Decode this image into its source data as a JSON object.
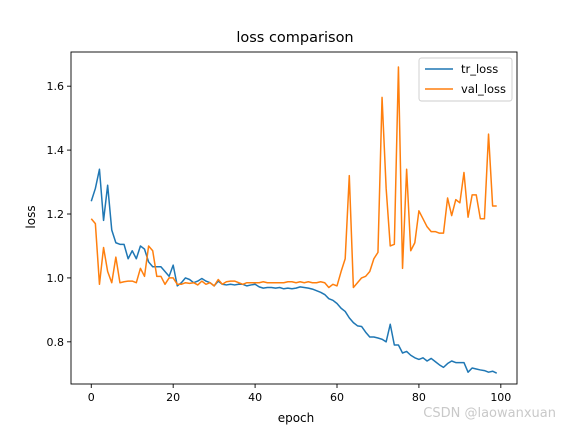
{
  "watermark": "CSDN @laowanxuan",
  "chart_data": {
    "type": "line",
    "title": "loss comparison",
    "xlabel": "epoch",
    "ylabel": "loss",
    "xlim": [
      -4.95,
      103.95
    ],
    "ylim": [
      0.668,
      1.707
    ],
    "xticks": [
      0,
      20,
      40,
      60,
      80,
      100
    ],
    "yticks": [
      0.8,
      1.0,
      1.2,
      1.4,
      1.6
    ],
    "xtick_labels": [
      "0",
      "20",
      "40",
      "60",
      "80",
      "100"
    ],
    "ytick_labels": [
      "0.8",
      "1.0",
      "1.2",
      "1.4",
      "1.6"
    ],
    "grid": false,
    "legend_position": "top-right",
    "x": [
      0,
      1,
      2,
      3,
      4,
      5,
      6,
      7,
      8,
      9,
      10,
      11,
      12,
      13,
      14,
      15,
      16,
      17,
      18,
      19,
      20,
      21,
      22,
      23,
      24,
      25,
      26,
      27,
      28,
      29,
      30,
      31,
      32,
      33,
      34,
      35,
      36,
      37,
      38,
      39,
      40,
      41,
      42,
      43,
      44,
      45,
      46,
      47,
      48,
      49,
      50,
      51,
      52,
      53,
      54,
      55,
      56,
      57,
      58,
      59,
      60,
      61,
      62,
      63,
      64,
      65,
      66,
      67,
      68,
      69,
      70,
      71,
      72,
      73,
      74,
      75,
      76,
      77,
      78,
      79,
      80,
      81,
      82,
      83,
      84,
      85,
      86,
      87,
      88,
      89,
      90,
      91,
      92,
      93,
      94,
      95,
      96,
      97,
      98,
      99
    ],
    "series": [
      {
        "name": "tr_loss",
        "color": "#1f77b4",
        "values": [
          1.24,
          1.28,
          1.34,
          1.18,
          1.29,
          1.15,
          1.11,
          1.105,
          1.105,
          1.06,
          1.085,
          1.06,
          1.1,
          1.09,
          1.05,
          1.035,
          1.035,
          1.035,
          1.02,
          1.005,
          1.04,
          0.975,
          0.985,
          1.0,
          0.995,
          0.985,
          0.99,
          0.998,
          0.99,
          0.985,
          0.975,
          0.99,
          0.98,
          0.978,
          0.98,
          0.978,
          0.98,
          0.98,
          0.975,
          0.978,
          0.98,
          0.972,
          0.968,
          0.97,
          0.97,
          0.968,
          0.97,
          0.966,
          0.968,
          0.966,
          0.968,
          0.972,
          0.97,
          0.968,
          0.965,
          0.96,
          0.955,
          0.948,
          0.935,
          0.93,
          0.92,
          0.905,
          0.895,
          0.875,
          0.86,
          0.85,
          0.848,
          0.83,
          0.815,
          0.815,
          0.812,
          0.808,
          0.8,
          0.855,
          0.79,
          0.79,
          0.765,
          0.77,
          0.758,
          0.75,
          0.745,
          0.75,
          0.74,
          0.748,
          0.738,
          0.728,
          0.72,
          0.732,
          0.74,
          0.735,
          0.735,
          0.735,
          0.705,
          0.718,
          0.715,
          0.712,
          0.71,
          0.705,
          0.708,
          0.702
        ]
      },
      {
        "name": "val_loss",
        "color": "#ff7f0e",
        "values": [
          1.185,
          1.17,
          0.98,
          1.095,
          1.02,
          0.985,
          1.065,
          0.985,
          0.988,
          0.99,
          0.99,
          0.985,
          1.03,
          1.005,
          1.1,
          1.085,
          1.005,
          1.005,
          0.98,
          1.0,
          1.0,
          0.98,
          0.98,
          0.985,
          0.983,
          0.985,
          0.978,
          0.99,
          0.98,
          0.985,
          0.975,
          0.995,
          0.98,
          0.988,
          0.99,
          0.99,
          0.985,
          0.98,
          0.985,
          0.985,
          0.985,
          0.985,
          0.988,
          0.985,
          0.985,
          0.985,
          0.985,
          0.985,
          0.988,
          0.988,
          0.985,
          0.988,
          0.985,
          0.988,
          0.985,
          0.985,
          0.988,
          0.985,
          0.97,
          0.98,
          0.975,
          1.02,
          1.06,
          1.32,
          0.97,
          0.985,
          1.0,
          1.005,
          1.02,
          1.06,
          1.08,
          1.565,
          1.28,
          1.1,
          1.105,
          1.66,
          1.03,
          1.34,
          1.085,
          1.11,
          1.21,
          1.185,
          1.16,
          1.145,
          1.145,
          1.14,
          1.14,
          1.25,
          1.195,
          1.245,
          1.235,
          1.33,
          1.19,
          1.26,
          1.26,
          1.185,
          1.185,
          1.45,
          1.225,
          1.225
        ]
      }
    ]
  }
}
